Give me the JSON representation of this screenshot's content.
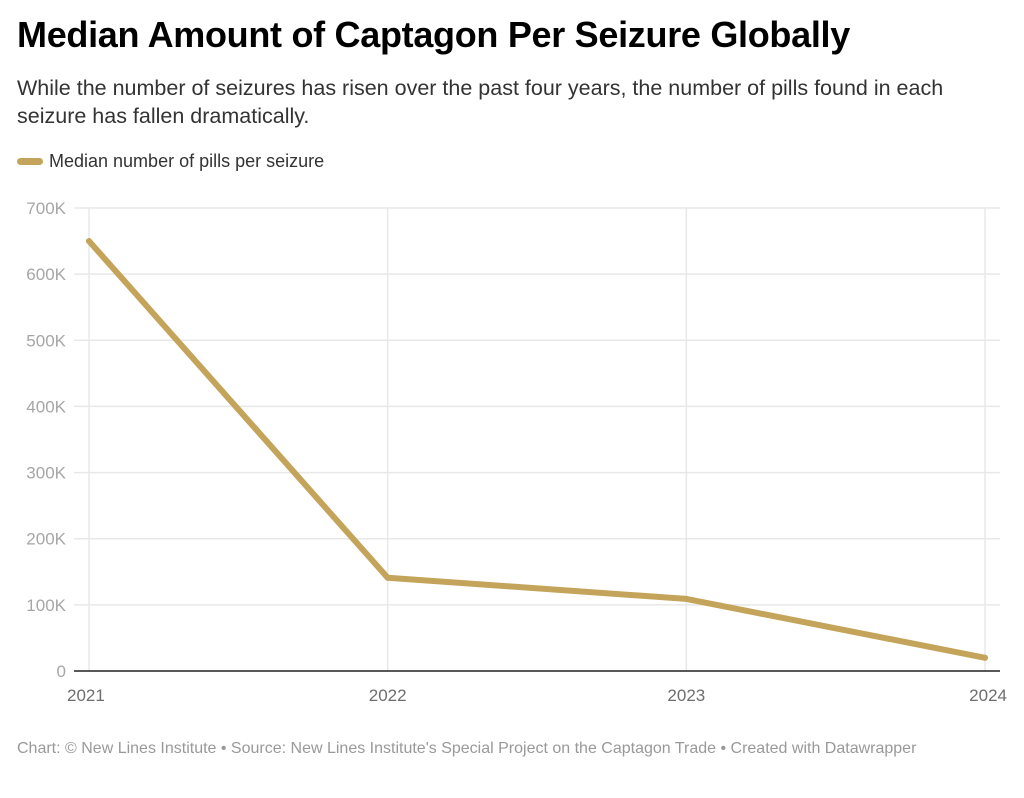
{
  "header": {
    "title": "Median Amount of Captagon Per Seizure Globally",
    "subtitle": "While the number of seizures has risen over the past four years, the number of pills found in each seizure has fallen dramatically."
  },
  "footer": {
    "text": "Chart: © New Lines Institute • Source: New Lines Institute's Special Project on the Captagon Trade • Created with Datawrapper"
  },
  "colors": {
    "series": "#c4a45a",
    "grid": "#e8e8e8",
    "axis": "#222222"
  },
  "chart_data": {
    "type": "line",
    "title": "Median Amount of Captagon Per Seizure Globally",
    "subtitle": "While the number of seizures has risen over the past four years, the number of pills found in each seizure has fallen dramatically.",
    "xlabel": "",
    "ylabel": "",
    "x": [
      "2021",
      "2022",
      "2023",
      "2024"
    ],
    "series": [
      {
        "name": "Median number of pills per seizure",
        "values": [
          650000,
          141000,
          109000,
          20000
        ]
      }
    ],
    "ylim": [
      0,
      700000
    ],
    "yticks": [
      0,
      100000,
      200000,
      300000,
      400000,
      500000,
      600000,
      700000
    ],
    "ytick_labels": [
      "0",
      "100K",
      "200K",
      "300K",
      "400K",
      "500K",
      "600K",
      "700K"
    ],
    "xtick_labels": [
      "2021",
      "2022",
      "2023",
      "2024"
    ],
    "grid": true,
    "legend_position": "top-left"
  }
}
